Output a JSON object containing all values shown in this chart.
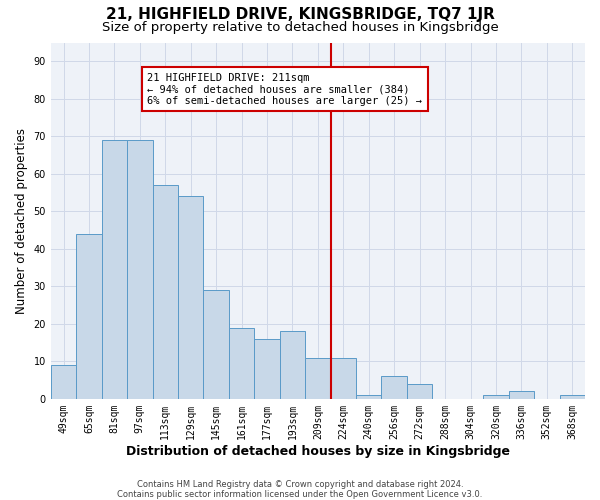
{
  "title": "21, HIGHFIELD DRIVE, KINGSBRIDGE, TQ7 1JR",
  "subtitle": "Size of property relative to detached houses in Kingsbridge",
  "xlabel": "Distribution of detached houses by size in Kingsbridge",
  "ylabel": "Number of detached properties",
  "bar_labels": [
    "49sqm",
    "65sqm",
    "81sqm",
    "97sqm",
    "113sqm",
    "129sqm",
    "145sqm",
    "161sqm",
    "177sqm",
    "193sqm",
    "209sqm",
    "224sqm",
    "240sqm",
    "256sqm",
    "272sqm",
    "288sqm",
    "304sqm",
    "320sqm",
    "336sqm",
    "352sqm",
    "368sqm"
  ],
  "bar_heights": [
    9,
    44,
    69,
    69,
    57,
    54,
    29,
    19,
    16,
    18,
    11,
    11,
    1,
    6,
    4,
    0,
    0,
    1,
    2,
    0,
    1
  ],
  "bar_color": "#c8d8e8",
  "bar_edgecolor": "#5a9ac8",
  "vline_x": 10.5,
  "vline_color": "#cc0000",
  "annotation_text": "21 HIGHFIELD DRIVE: 211sqm\n← 94% of detached houses are smaller (384)\n6% of semi-detached houses are larger (25) →",
  "annotation_box_color": "#cc0000",
  "ylim": [
    0,
    95
  ],
  "yticks": [
    0,
    10,
    20,
    30,
    40,
    50,
    60,
    70,
    80,
    90
  ],
  "grid_color": "#d0d8e8",
  "bg_color": "#eef2f8",
  "footer": "Contains HM Land Registry data © Crown copyright and database right 2024.\nContains public sector information licensed under the Open Government Licence v3.0.",
  "title_fontsize": 11,
  "subtitle_fontsize": 9.5,
  "xlabel_fontsize": 9,
  "ylabel_fontsize": 8.5,
  "tick_fontsize": 7,
  "annotation_fontsize": 7.5,
  "footer_fontsize": 6
}
